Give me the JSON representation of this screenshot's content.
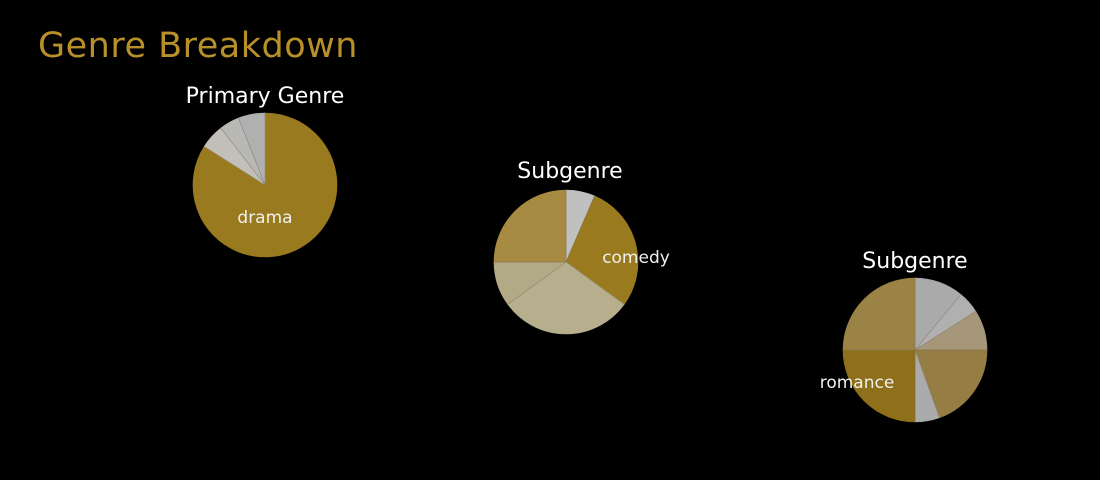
{
  "page": {
    "title": "Genre Breakdown",
    "title_color": "#b8902a",
    "background": "#000000"
  },
  "chart_data": [
    {
      "type": "pie",
      "title": "Primary Genre",
      "slices": [
        {
          "label": "drama",
          "value": 0.84,
          "color": "#9a7a1e"
        },
        {
          "label": "",
          "value": 0.055,
          "color": "#c2c0b8"
        },
        {
          "label": "",
          "value": 0.045,
          "color": "#b8b8b4"
        },
        {
          "label": "",
          "value": 0.06,
          "color": "#b0b0b0"
        }
      ]
    },
    {
      "type": "pie",
      "title": "Subgenre",
      "slices": [
        {
          "label": "",
          "value": 0.065,
          "color": "#c0c0c0"
        },
        {
          "label": "comedy",
          "value": 0.285,
          "color": "#9a7a1e"
        },
        {
          "label": "",
          "value": 0.3,
          "color": "#b7ae8e"
        },
        {
          "label": "",
          "value": 0.1,
          "color": "#b2a986"
        },
        {
          "label": "",
          "value": 0.25,
          "color": "#a88b42"
        }
      ]
    },
    {
      "type": "pie",
      "title": "Subgenre",
      "slices": [
        {
          "label": "",
          "value": 0.11,
          "color": "#aaaaaa"
        },
        {
          "label": "",
          "value": 0.05,
          "color": "#b0b0b0"
        },
        {
          "label": "",
          "value": 0.09,
          "color": "#a6977a"
        },
        {
          "label": "",
          "value": 0.195,
          "color": "#957d44"
        },
        {
          "label": "",
          "value": 0.055,
          "color": "#ababab"
        },
        {
          "label": "romance",
          "value": 0.25,
          "color": "#8e6f1a"
        },
        {
          "label": "",
          "value": 0.25,
          "color": "#9a8344"
        }
      ]
    }
  ]
}
